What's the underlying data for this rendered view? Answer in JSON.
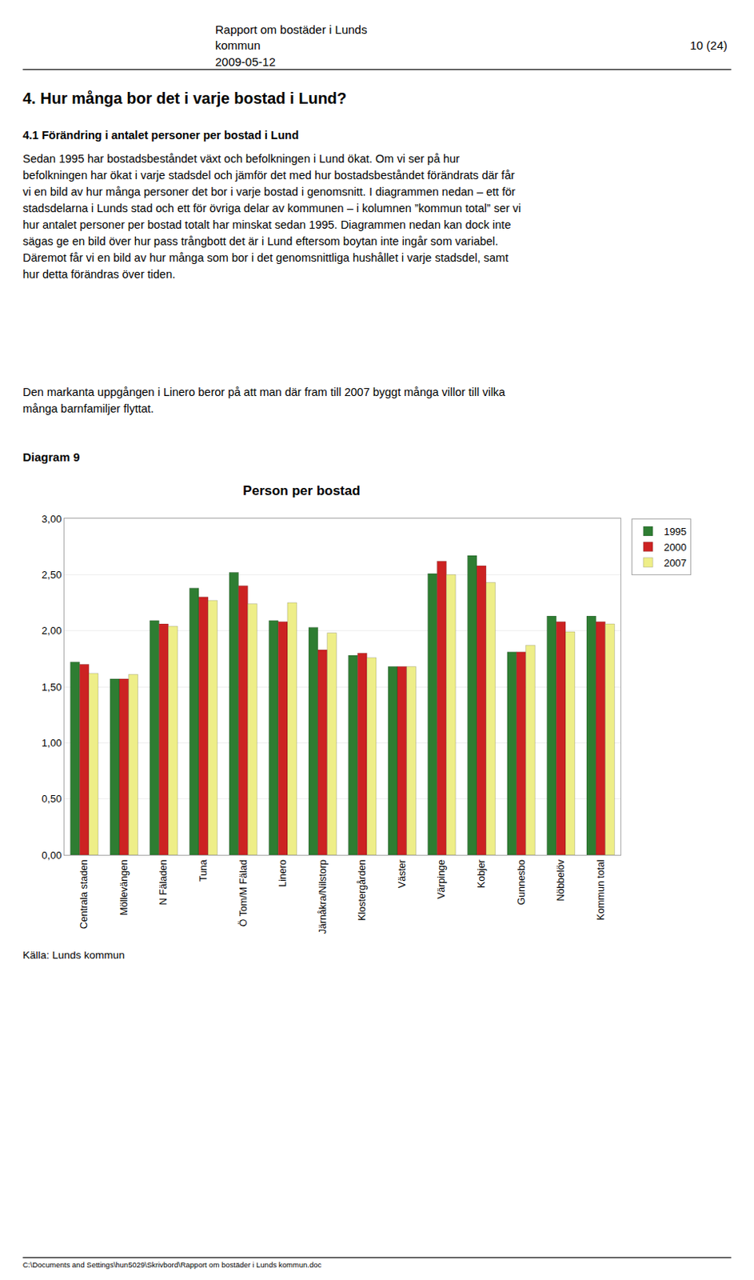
{
  "chart_data": {
    "type": "bar",
    "title": "Person per bostad",
    "categories": [
      "Centrala staden",
      "Möllevängen",
      "N Fäladen",
      "Tuna",
      "Ö Tom/M Fälad",
      "Linero",
      "Järnåkra/Nilstorp",
      "Klostergården",
      "Väster",
      "Värpinge",
      "Kobjer",
      "Gunnesbo",
      "Nöbbelöv",
      "Kommun total"
    ],
    "series": [
      {
        "name": "1995",
        "color": "#2e7d32",
        "values": [
          1.72,
          1.57,
          2.09,
          2.38,
          2.52,
          2.09,
          2.03,
          1.78,
          1.68,
          2.51,
          2.67,
          1.81,
          2.13,
          2.13
        ]
      },
      {
        "name": "2000",
        "color": "#cc2222",
        "values": [
          1.7,
          1.57,
          2.06,
          2.3,
          2.4,
          2.08,
          1.83,
          1.8,
          1.68,
          2.62,
          2.58,
          1.81,
          2.08,
          2.08
        ]
      },
      {
        "name": "2007",
        "color": "#eeee88",
        "values": [
          1.62,
          1.61,
          2.04,
          2.27,
          2.24,
          2.25,
          1.98,
          1.76,
          1.68,
          2.5,
          2.43,
          1.87,
          1.99,
          2.06
        ]
      }
    ],
    "ylim": [
      0,
      3.0
    ],
    "yticks": [
      {
        "value": 0.0,
        "label": "0,00"
      },
      {
        "value": 0.5,
        "label": "0,50"
      },
      {
        "value": 1.0,
        "label": "1,00"
      },
      {
        "value": 1.5,
        "label": "1,50"
      },
      {
        "value": 2.0,
        "label": "2,00"
      },
      {
        "value": 2.5,
        "label": "2,50"
      },
      {
        "value": 3.0,
        "label": "3,00"
      }
    ],
    "grid": true,
    "legend": "right",
    "annotations": [
      "Rapport om bostäder i Lunds",
      "kommun",
      "10 (24)",
      "2009-05-12",
      "4. Hur många bor det i varje bostad i Lund?",
      "4.1 Förändring i antalet personer per bostad i Lund",
      "Sedan 1995 har bostadsbeståndet växt och befolkningen i Lund ökat. Om vi ser på hur befolkningen har ökat i varje stadsdel och jämför det med hur bostadsbeståndet förändrats där får vi en bild av hur många personer det bor i varje bostad i genomsnitt. I diagrammen nedan – ett för stadsdelarna i Lunds stad och ett för övriga delar av kommunen – i kolumnen ”kommun total” ser vi hur antalet personer per bostad totalt har minskat sedan 1995. Diagrammen nedan kan dock inte sägas ge en bild över hur pass trångbott det är i Lund eftersom boytan inte ingår som variabel. Däremot får vi en bild av hur många som bor i det genomsnittliga hushållet i varje stadsdel, samt hur detta förändras över tiden.",
      "Den markanta uppgången i Linero beror på att man där fram till 2007 byggt många villor till vilka många barnfamiljer flyttat.",
      "Diagram 9",
      "Källa: Lunds kommun",
      "C:\\Documents and Settings\\hun5029\\Skrivbord\\Rapport om bostäder i Lunds kommun.doc"
    ]
  }
}
